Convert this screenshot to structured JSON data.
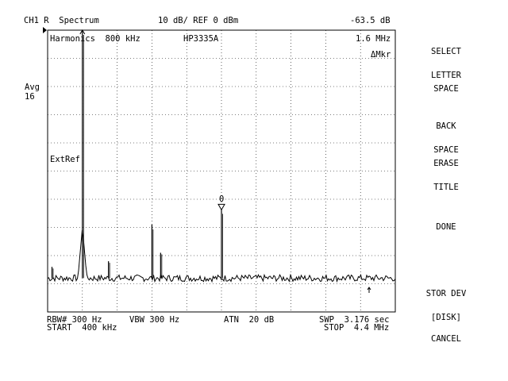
{
  "header": {
    "channel": "CH1 R  Spectrum",
    "scale": "10 dB/ REF 0 dBm",
    "marker_value": "-63.5 dB"
  },
  "graticule_text": {
    "title": "Harmonics  800 kHz",
    "source": "HP3335A",
    "marker_freq": "1.6 MHz",
    "marker_mode": "ΔMkr",
    "extref": "ExtRef",
    "marker_label": "0"
  },
  "left": {
    "avg_label": "Avg",
    "avg_count": "16"
  },
  "footer": {
    "rbw": "RBW# 300 Hz",
    "vbw": "VBW 300 Hz",
    "atn": "ATN  20 dB",
    "swp": "SWP  3.176 sec",
    "start": "START  400 kHz",
    "stop": "STOP  4.4 MHz"
  },
  "softkeys": [
    {
      "line1": "SELECT",
      "line2": "LETTER"
    },
    {
      "line1": "SPACE",
      "line2": ""
    },
    {
      "line1": "BACK",
      "line2": "SPACE"
    },
    {
      "line1": "ERASE",
      "line2": "TITLE"
    },
    {
      "line1": "DONE",
      "line2": ""
    },
    {
      "line1": "STOR DEV",
      "line2": "[DISK]"
    },
    {
      "line1": "CANCEL",
      "line2": ""
    }
  ],
  "chart_data": {
    "type": "line",
    "x_start_khz": 400,
    "x_stop_khz": 4400,
    "ref_level_dbm": 0,
    "db_per_div": 10,
    "noise_floor_dbm": -88,
    "peaks": [
      {
        "freq_khz": 450,
        "level_dbm": -84
      },
      {
        "freq_khz": 800,
        "level_dbm": 0
      },
      {
        "freq_khz": 1100,
        "level_dbm": -82
      },
      {
        "freq_khz": 1600,
        "level_dbm": -69
      },
      {
        "freq_khz": 1700,
        "level_dbm": -79
      },
      {
        "freq_khz": 2400,
        "level_dbm": -63.5
      }
    ],
    "marker_freq_khz": 2400,
    "grid": true
  }
}
